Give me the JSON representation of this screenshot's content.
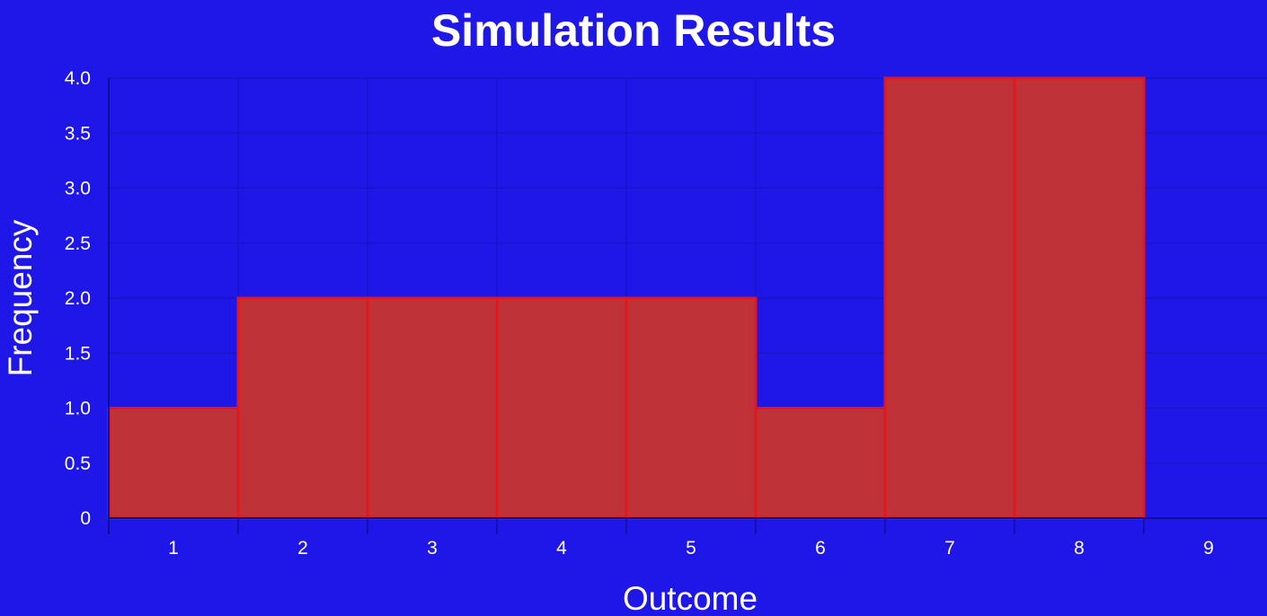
{
  "colors": {
    "background": "#1e17e8",
    "bar_fill": "#bf3338",
    "bar_border": "#e4161d",
    "grid": "#1a14c4",
    "text": "#ffffff"
  },
  "chart_data": {
    "type": "bar",
    "title": "Simulation Results",
    "xlabel": "Outcome",
    "ylabel": "Frequency",
    "categories": [
      "1",
      "2",
      "3",
      "4",
      "5",
      "6",
      "7",
      "8",
      "9"
    ],
    "values": [
      1,
      2,
      2,
      2,
      2,
      1,
      4,
      4,
      0
    ],
    "ylim": [
      0,
      4
    ],
    "yticks": [
      "0",
      "0.5",
      "1.0",
      "1.5",
      "2.0",
      "2.5",
      "3.0",
      "3.5",
      "4.0"
    ],
    "grid": true,
    "legend": "none"
  }
}
